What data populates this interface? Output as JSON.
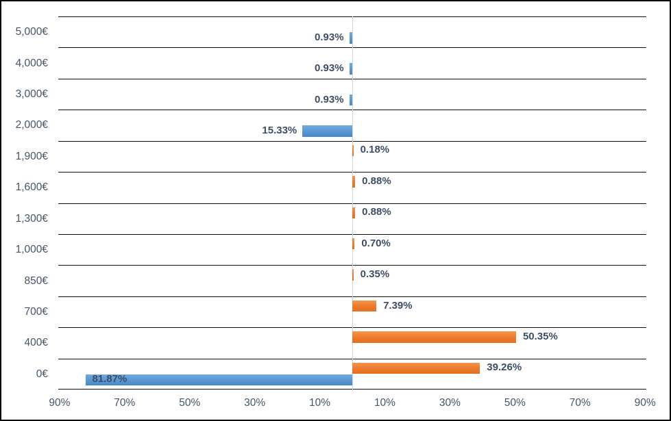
{
  "chart_data": {
    "type": "bar",
    "subtype": "tornado-diverging-horizontal",
    "title": "",
    "legend_position": "none",
    "grid": "horizontal-category-separators",
    "categories": [
      "5,000€",
      "4,000€",
      "3,000€",
      "2,000€",
      "1,900€",
      "1,600€",
      "1,300€",
      "1,000€",
      "850€",
      "700€",
      "400€",
      "0€"
    ],
    "series": [
      {
        "name": "blue-left",
        "direction": "left",
        "color": "#5B9BD5",
        "values": [
          0.93,
          0.93,
          0.93,
          15.33,
          null,
          null,
          null,
          null,
          null,
          null,
          null,
          81.87
        ],
        "labels": [
          "0.93%",
          "0.93%",
          "0.93%",
          "15.33%",
          null,
          null,
          null,
          null,
          null,
          null,
          null,
          "81.87%"
        ]
      },
      {
        "name": "orange-right",
        "direction": "right",
        "color": "#ED7D31",
        "values": [
          null,
          null,
          null,
          null,
          0.18,
          0.88,
          0.88,
          0.7,
          0.35,
          7.39,
          50.35,
          39.26
        ],
        "labels": [
          null,
          null,
          null,
          null,
          "0.18%",
          "0.88%",
          "0.88%",
          "0.70%",
          "0.35%",
          "7.39%",
          "50.35%",
          "39.26%"
        ]
      }
    ],
    "x_axis": {
      "min": -90.4,
      "max": 90.4,
      "tick_values": [
        -90,
        -70,
        -50,
        -30,
        -10,
        10,
        30,
        50,
        70,
        90
      ],
      "tick_labels": [
        "90%",
        "70%",
        "50%",
        "30%",
        "10%",
        "10%",
        "30%",
        "50%",
        "70%",
        "90%"
      ]
    },
    "colors": {
      "data_label_text": "#3E4D66",
      "axis_label_text": "#44546A",
      "gridline": "#0D0D0D",
      "zero_line": "#D6D6D6",
      "background": "#FFFFFF",
      "frame_border": "#000000"
    }
  }
}
